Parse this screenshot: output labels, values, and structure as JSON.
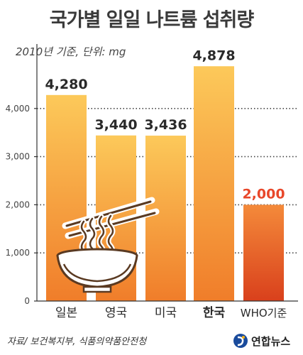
{
  "header": {
    "title": "국가별 일일 나트륨 섭취량",
    "subtitle": "2010년 기준, 단위: mg"
  },
  "footer": {
    "source": "자료/ 보건복지부, 식품의약품안전청",
    "brand": "연합뉴스"
  },
  "colors": {
    "bar_gradient_top": "#fcc95a",
    "bar_gradient_bottom": "#f07d2a",
    "who_bar_top": "#f48a3a",
    "who_bar_bottom": "#d9401c",
    "who_label": "#e8472a",
    "gridline": "#444444",
    "axis": "#333333"
  },
  "icons": {
    "illustration": "noodle-bowl-icon",
    "brand": "yonhap-logo-icon"
  },
  "chart_data": {
    "type": "bar",
    "title": "국가별 일일 나트륨 섭취량",
    "categories": [
      "일본",
      "영국",
      "미국",
      "한국",
      "WHO기준"
    ],
    "values": [
      4280,
      3440,
      3436,
      4878,
      2000
    ],
    "value_labels": [
      "4,280",
      "3,440",
      "3,436",
      "4,878",
      "2,000"
    ],
    "highlight_category": "한국",
    "reference_category": "WHO기준",
    "ylim": [
      0,
      5000
    ],
    "yticks": [
      0,
      1000,
      2000,
      3000,
      4000
    ],
    "ytick_labels": [
      "0",
      "1,000",
      "2,000",
      "3,000",
      "4,000"
    ],
    "grid": true,
    "grid_style": "dotted horizontal",
    "legend": "none",
    "xlabel": "",
    "ylabel": ""
  }
}
